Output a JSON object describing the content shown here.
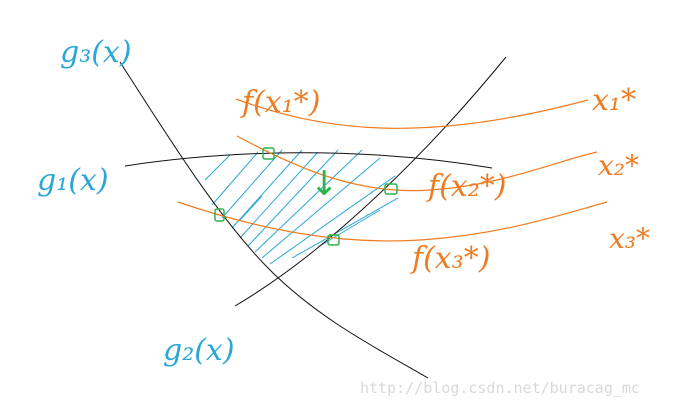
{
  "labels": {
    "g3": "g₃(x)",
    "g1": "g₁(x)",
    "g2": "g₂(x)",
    "f_x1": "f(x₁*)",
    "f_x2": "f(x₂*)",
    "f_x3": "f(x₃*)",
    "x1": "x₁*",
    "x2": "x₂*",
    "x3": "x₃*",
    "arrow": "↓"
  },
  "watermark": "http://blog.csdn.net/buracag_mc",
  "colors": {
    "constraint": "#111111",
    "objective": "#f07c22",
    "label_blue": "#2aa7d8",
    "hatch": "#2aa7d8",
    "marker": "#2db34a"
  }
}
